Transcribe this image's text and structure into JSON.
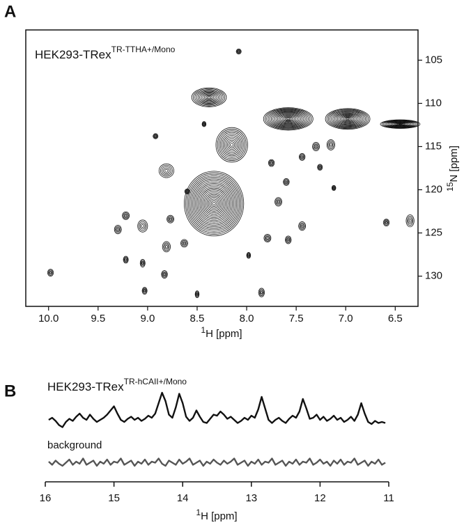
{
  "chart_data": [
    {
      "type": "contour",
      "panel": "A",
      "title": "HEK293-TRex",
      "title_sup": "TR-TTHA+/Mono",
      "x_label_sup": "1",
      "x_label": "H [ppm]",
      "y_label_sup": "15",
      "y_label": "N [ppm]",
      "xlim": [
        10.23,
        6.27
      ],
      "ylim": [
        133.5,
        101.5
      ],
      "xticks": [
        {
          "value": 10,
          "label": "10.0"
        },
        9.5,
        {
          "value": 9,
          "label": "9.0"
        },
        8.5,
        {
          "value": 8,
          "label": "8.0"
        },
        7.5,
        {
          "value": 7,
          "label": "7.0"
        },
        6.5
      ],
      "yticks": [
        105,
        110,
        115,
        120,
        125,
        130
      ],
      "color": "#111111",
      "x": [
        9.98,
        8.08,
        8.38,
        8.43,
        8.92,
        8.15,
        7.58,
        6.98,
        6.45,
        8.33,
        8.81,
        9.3,
        9.05,
        9.22,
        8.77,
        8.63,
        8.81,
        9.22,
        9.05,
        8.83,
        9.03,
        8.5,
        7.85,
        7.58,
        7.79,
        7.98,
        7.68,
        7.6,
        7.44,
        7.3,
        7.15,
        7.44,
        7.26,
        7.12,
        7.75,
        6.59,
        6.35,
        8.6
      ],
      "y": [
        129.6,
        104.0,
        109.3,
        112.4,
        113.8,
        114.8,
        111.8,
        111.8,
        112.4,
        121.6,
        117.8,
        124.6,
        124.2,
        123.0,
        123.4,
        126.2,
        126.6,
        128.1,
        128.5,
        129.8,
        131.7,
        132.1,
        131.9,
        125.8,
        125.6,
        127.6,
        121.4,
        119.1,
        124.2,
        115.0,
        114.8,
        116.2,
        117.4,
        119.8,
        116.9,
        123.8,
        123.6,
        120.2
      ],
      "x_width": [
        0.06,
        0.05,
        0.35,
        0.04,
        0.05,
        0.32,
        0.5,
        0.45,
        0.4,
        0.6,
        0.15,
        0.07,
        0.1,
        0.07,
        0.07,
        0.07,
        0.08,
        0.05,
        0.05,
        0.06,
        0.05,
        0.04,
        0.06,
        0.06,
        0.07,
        0.04,
        0.07,
        0.06,
        0.07,
        0.07,
        0.08,
        0.06,
        0.05,
        0.04,
        0.06,
        0.06,
        0.08,
        0.05
      ],
      "y_width": [
        0.8,
        0.6,
        2.2,
        0.6,
        0.6,
        4.0,
        2.6,
        2.4,
        1.0,
        7.5,
        1.6,
        1.0,
        1.4,
        0.9,
        0.9,
        0.9,
        1.2,
        0.8,
        0.9,
        0.9,
        0.8,
        0.8,
        1.0,
        0.9,
        0.9,
        0.7,
        1.0,
        0.8,
        1.0,
        1.0,
        1.2,
        0.8,
        0.7,
        0.6,
        0.8,
        0.8,
        1.4,
        0.6
      ]
    },
    {
      "type": "line",
      "panel": "B",
      "x_label_sup": "1",
      "x_label": "H [ppm]",
      "xlim": [
        16,
        11
      ],
      "xticks": [
        16,
        15,
        14,
        13,
        12,
        11
      ],
      "ylim": [
        0,
        100
      ],
      "x": [
        15.95,
        15.9,
        15.85,
        15.8,
        15.75,
        15.7,
        15.65,
        15.6,
        15.55,
        15.5,
        15.45,
        15.4,
        15.35,
        15.3,
        15.25,
        15.2,
        15.15,
        15.1,
        15.05,
        15.0,
        14.95,
        14.9,
        14.85,
        14.8,
        14.75,
        14.7,
        14.65,
        14.6,
        14.55,
        14.5,
        14.45,
        14.4,
        14.35,
        14.3,
        14.25,
        14.2,
        14.15,
        14.1,
        14.05,
        14.0,
        13.95,
        13.9,
        13.85,
        13.8,
        13.75,
        13.7,
        13.65,
        13.6,
        13.55,
        13.5,
        13.45,
        13.4,
        13.35,
        13.3,
        13.25,
        13.2,
        13.15,
        13.1,
        13.05,
        13.0,
        12.95,
        12.9,
        12.85,
        12.8,
        12.75,
        12.7,
        12.65,
        12.6,
        12.55,
        12.5,
        12.45,
        12.4,
        12.35,
        12.3,
        12.25,
        12.2,
        12.15,
        12.1,
        12.05,
        12.0,
        11.95,
        11.9,
        11.85,
        11.8,
        11.75,
        11.7,
        11.65,
        11.6,
        11.55,
        11.5,
        11.45,
        11.4,
        11.35,
        11.3,
        11.25,
        11.2,
        11.15,
        11.1,
        11.05
      ],
      "series": [
        {
          "name": "HEK293-TRex",
          "name_sup": "TR-hCAII+/Mono",
          "color": "#111111",
          "values": [
            58,
            60,
            57,
            53,
            51,
            56,
            59,
            57,
            61,
            64,
            60,
            58,
            63,
            59,
            56,
            58,
            60,
            63,
            67,
            71,
            64,
            58,
            56,
            59,
            61,
            58,
            60,
            57,
            59,
            62,
            60,
            64,
            74,
            84,
            76,
            63,
            60,
            70,
            83,
            74,
            61,
            57,
            60,
            67,
            61,
            56,
            55,
            59,
            63,
            62,
            66,
            63,
            59,
            61,
            58,
            55,
            57,
            60,
            58,
            62,
            60,
            68,
            80,
            69,
            58,
            55,
            58,
            60,
            57,
            55,
            59,
            62,
            60,
            66,
            78,
            69,
            59,
            60,
            63,
            58,
            61,
            57,
            59,
            62,
            58,
            60,
            56,
            58,
            61,
            57,
            63,
            74,
            64,
            56,
            54,
            57,
            55,
            56,
            55
          ]
        },
        {
          "name": "background",
          "color": "#555555",
          "values": [
            18,
            15,
            19,
            16,
            14,
            17,
            20,
            15,
            18,
            16,
            21,
            15,
            17,
            19,
            14,
            18,
            16,
            20,
            15,
            18,
            17,
            21,
            15,
            17,
            19,
            14,
            18,
            16,
            20,
            15,
            18,
            17,
            21,
            16,
            14,
            19,
            17,
            15,
            20,
            16,
            18,
            21,
            15,
            17,
            19,
            14,
            18,
            16,
            20,
            17,
            15,
            19,
            16,
            18,
            21,
            15,
            17,
            19,
            14,
            18,
            16,
            20,
            15,
            18,
            17,
            21,
            15,
            17,
            19,
            14,
            18,
            16,
            20,
            15,
            18,
            17,
            21,
            15,
            17,
            20,
            16,
            18,
            14,
            19,
            16,
            20,
            15,
            18,
            17,
            21,
            15,
            17,
            19,
            14,
            18,
            16,
            20,
            15,
            17
          ]
        }
      ]
    }
  ]
}
